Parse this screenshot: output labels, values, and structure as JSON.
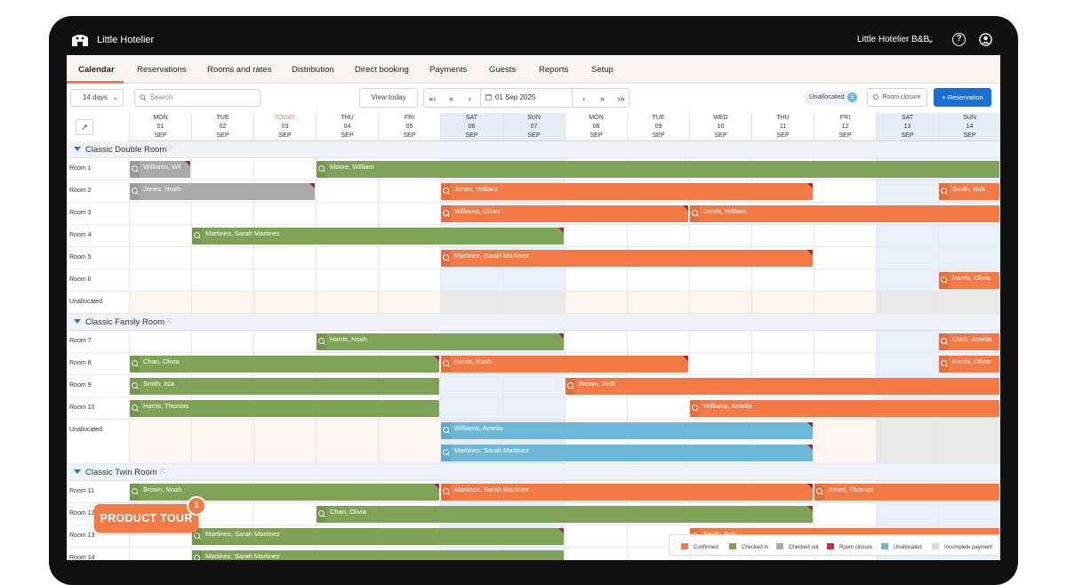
{
  "app": {
    "brand": "Little Hotelier",
    "property": "Little Hotelier B&B"
  },
  "nav": [
    "Calendar",
    "Reservations",
    "Rooms and rates",
    "Distribution",
    "Direct booking",
    "Payments",
    "Guests",
    "Reports",
    "Setup"
  ],
  "toolbar": {
    "range": "14 days",
    "search_placeholder": "Search",
    "view_today": "View today",
    "date": "01 Sep 2025",
    "unallocated_label": "Unallocated",
    "unallocated_count": "5",
    "room_closure": "Room closure",
    "reservation": "+ Reservation"
  },
  "days": [
    {
      "dow": "MON",
      "day": "01",
      "mon": "SEP",
      "weekend": false,
      "today": false
    },
    {
      "dow": "TUE",
      "day": "02",
      "mon": "SEP",
      "weekend": false,
      "today": false
    },
    {
      "dow": "TODAY",
      "day": "03",
      "mon": "SEP",
      "weekend": false,
      "today": true
    },
    {
      "dow": "THU",
      "day": "04",
      "mon": "SEP",
      "weekend": false,
      "today": false
    },
    {
      "dow": "FRI",
      "day": "05",
      "mon": "SEP",
      "weekend": false,
      "today": false
    },
    {
      "dow": "SAT",
      "day": "06",
      "mon": "SEP",
      "weekend": true,
      "today": false
    },
    {
      "dow": "SUN",
      "day": "07",
      "mon": "SEP",
      "weekend": true,
      "today": false
    },
    {
      "dow": "MON",
      "day": "08",
      "mon": "SEP",
      "weekend": false,
      "today": false
    },
    {
      "dow": "TUE",
      "day": "09",
      "mon": "SEP",
      "weekend": false,
      "today": false
    },
    {
      "dow": "WED",
      "day": "10",
      "mon": "SEP",
      "weekend": false,
      "today": false
    },
    {
      "dow": "THU",
      "day": "11",
      "mon": "SEP",
      "weekend": false,
      "today": false
    },
    {
      "dow": "FRI",
      "day": "12",
      "mon": "SEP",
      "weekend": false,
      "today": false
    },
    {
      "dow": "SAT",
      "day": "13",
      "mon": "SEP",
      "weekend": true,
      "today": false
    },
    {
      "dow": "SUN",
      "day": "14",
      "mon": "SEP",
      "weekend": true,
      "today": false
    }
  ],
  "status_colors": {
    "confirmed": "#f47a45",
    "checked_in": "#7fa356",
    "checked_out": "#a9a9aa",
    "room_closure": "#d8243f",
    "unallocated": "#6cb8d9",
    "incomplete_payment": "#d9d9d9"
  },
  "groups": [
    {
      "name": "Classic Double Room",
      "rows": [
        {
          "label": "Room 1",
          "bookings": [
            {
              "guest": "Williams, Wil",
              "status": "checked_out",
              "start": 0,
              "end": 1,
              "flag": true
            },
            {
              "guest": "Moore, William",
              "status": "checked_in",
              "start": 3,
              "end": 14,
              "flag": false
            }
          ]
        },
        {
          "label": "Room 2",
          "bookings": [
            {
              "guest": "Jones, Noah",
              "status": "checked_out",
              "start": 0,
              "end": 3,
              "flag": true
            },
            {
              "guest": "Jones, William",
              "status": "confirmed",
              "start": 5,
              "end": 11,
              "flag": true
            },
            {
              "guest": "Smith, Bob",
              "status": "confirmed",
              "start": 13,
              "end": 14,
              "flag": false
            }
          ]
        },
        {
          "label": "Room 3",
          "bookings": [
            {
              "guest": "Williams, Oliver",
              "status": "confirmed",
              "start": 5,
              "end": 9,
              "flag": true
            },
            {
              "guest": "Jones, William",
              "status": "confirmed",
              "start": 9,
              "end": 14,
              "flag": false
            }
          ]
        },
        {
          "label": "Room 4",
          "bookings": [
            {
              "guest": "Martinez, Sarah Martinez",
              "status": "checked_in",
              "start": 1,
              "end": 7,
              "flag": true
            }
          ]
        },
        {
          "label": "Room 5",
          "bookings": [
            {
              "guest": "Martinez, Sarah Martinez",
              "status": "confirmed",
              "start": 5,
              "end": 11,
              "flag": true
            }
          ]
        },
        {
          "label": "Room 6",
          "bookings": [
            {
              "guest": "Harris, Olivia",
              "status": "confirmed",
              "start": 13,
              "end": 14,
              "flag": false
            }
          ]
        },
        {
          "label": "Unallocated",
          "unallocated": true,
          "bookings": []
        }
      ]
    },
    {
      "name": "Classic Family Room",
      "rows": [
        {
          "label": "Room 7",
          "bookings": [
            {
              "guest": "Harris, Noah",
              "status": "checked_in",
              "start": 3,
              "end": 7,
              "flag": true
            },
            {
              "guest": "Clark, Amelia",
              "status": "confirmed",
              "start": 13,
              "end": 14,
              "flag": false
            }
          ]
        },
        {
          "label": "Room 8",
          "bookings": [
            {
              "guest": "Chan, Olivia",
              "status": "checked_in",
              "start": 0,
              "end": 5,
              "flag": true
            },
            {
              "guest": "Harris, Noah",
              "status": "confirmed",
              "start": 5,
              "end": 9,
              "flag": true
            },
            {
              "guest": "Harris, Oliver",
              "status": "confirmed",
              "start": 13,
              "end": 14,
              "flag": false
            }
          ]
        },
        {
          "label": "Room 9",
          "bookings": [
            {
              "guest": "Smith, Isla",
              "status": "checked_in",
              "start": 0,
              "end": 5,
              "flag": false
            },
            {
              "guest": "Brown, Jack",
              "status": "confirmed",
              "start": 7,
              "end": 14,
              "flag": false
            }
          ]
        },
        {
          "label": "Room 10",
          "bookings": [
            {
              "guest": "Harris, Thomas",
              "status": "checked_in",
              "start": 0,
              "end": 5,
              "flag": false
            },
            {
              "guest": "Williams, Amelia",
              "status": "confirmed",
              "start": 9,
              "end": 14,
              "flag": false
            }
          ]
        },
        {
          "label": "Unallocated",
          "unallocated": true,
          "double": true,
          "bookings": [
            {
              "guest": "Williams, Amelia",
              "status": "unallocated",
              "start": 5,
              "end": 11,
              "flag": true,
              "lane": 0
            },
            {
              "guest": "Martinez, Sarah Martinez",
              "status": "unallocated",
              "start": 5,
              "end": 11,
              "flag": true,
              "lane": 1
            }
          ]
        }
      ]
    },
    {
      "name": "Classic Twin Room",
      "rows": [
        {
          "label": "Room 11",
          "bookings": [
            {
              "guest": "Brown, Noah",
              "status": "checked_in",
              "start": 0,
              "end": 5,
              "flag": true
            },
            {
              "guest": "Martinez, Sarah Martinez",
              "status": "confirmed",
              "start": 5,
              "end": 11,
              "flag": true
            },
            {
              "guest": "Jones, Thomas",
              "status": "confirmed",
              "start": 11,
              "end": 14,
              "flag": false
            }
          ]
        },
        {
          "label": "Room 12",
          "bookings": [
            {
              "guest": "Chan, Olivia",
              "status": "checked_in",
              "start": 3,
              "end": 11,
              "flag": true
            }
          ]
        },
        {
          "label": "Room 13",
          "bookings": [
            {
              "guest": "Martinez, Sarah Martinez",
              "status": "checked_in",
              "start": 1,
              "end": 7,
              "flag": true
            },
            {
              "guest": "Smith, Bob",
              "status": "confirmed",
              "start": 9,
              "end": 14,
              "flag": false
            }
          ]
        },
        {
          "label": "Room 14",
          "bookings": [
            {
              "guest": "Martinez, Sarah Martinez",
              "status": "checked_in",
              "start": 1,
              "end": 7,
              "flag": false
            }
          ]
        }
      ]
    }
  ],
  "legend": [
    {
      "label": "Confirmed",
      "status": "confirmed"
    },
    {
      "label": "Checked in",
      "status": "checked_in"
    },
    {
      "label": "Checked out",
      "status": "checked_out"
    },
    {
      "label": "Room closure",
      "status": "room_closure"
    },
    {
      "label": "Unallocated",
      "status": "unallocated"
    },
    {
      "label": "Incomplete payment",
      "status": "incomplete_payment"
    }
  ],
  "tour": {
    "label": "PRODUCT TOUR",
    "badge": "1"
  }
}
